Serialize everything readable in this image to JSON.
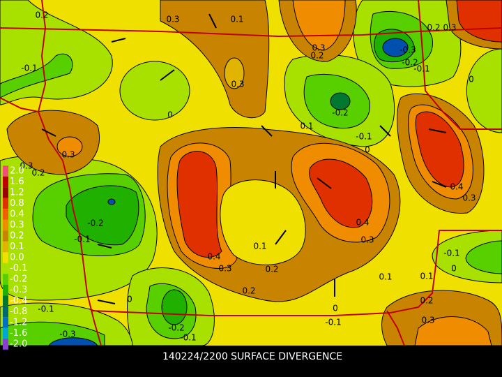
{
  "caption": "140224/2200 SURFACE DIVERGENCE",
  "legend": [
    {
      "label": "2.0",
      "color": "#f05078"
    },
    {
      "label": "1.6",
      "color": "#c00000"
    },
    {
      "label": "1.2",
      "color": "#9c0000"
    },
    {
      "label": "0.8",
      "color": "#e03000"
    },
    {
      "label": "0.4",
      "color": "#f06000"
    },
    {
      "label": "0.3",
      "color": "#f08c00"
    },
    {
      "label": "0.2",
      "color": "#c88400"
    },
    {
      "label": "0.1",
      "color": "#e0b400"
    },
    {
      "label": "0.0",
      "color": "#f0e000"
    },
    {
      "label": "-0.1",
      "color": "#a8e000"
    },
    {
      "label": "-0.2",
      "color": "#58d000"
    },
    {
      "label": "-0.3",
      "color": "#20b000"
    },
    {
      "label": "-0.4",
      "color": "#007830"
    },
    {
      "label": "-0.8",
      "color": "#006870"
    },
    {
      "label": "-1.2",
      "color": "#0070c0"
    },
    {
      "label": "-1.6",
      "color": "#00a8d0"
    },
    {
      "label": "-2.0",
      "color": "#8840d0"
    }
  ],
  "contour_labels": [
    "0.2",
    "0.3",
    "0.1",
    "0.3",
    "0.2",
    "0.2",
    "0.3",
    "-0.3",
    "-0.2",
    "-0.1",
    "-0.1",
    "0.3",
    "0",
    "-0.2",
    "0",
    "0.1",
    "-0.1",
    "0",
    "0.3",
    "0.3",
    "0.2",
    "-0.2",
    "-0.1",
    "0.4",
    "0.3",
    "0.4",
    "0.3",
    "0.1",
    "0.4",
    "0.3",
    "0.2",
    "-0.1",
    "0",
    "0.1",
    "0.1",
    "0.2",
    "0",
    "-0.1",
    "0.2",
    "0",
    "-0.1",
    "0.3",
    "-0.2",
    "-0.1",
    "-0.3"
  ]
}
